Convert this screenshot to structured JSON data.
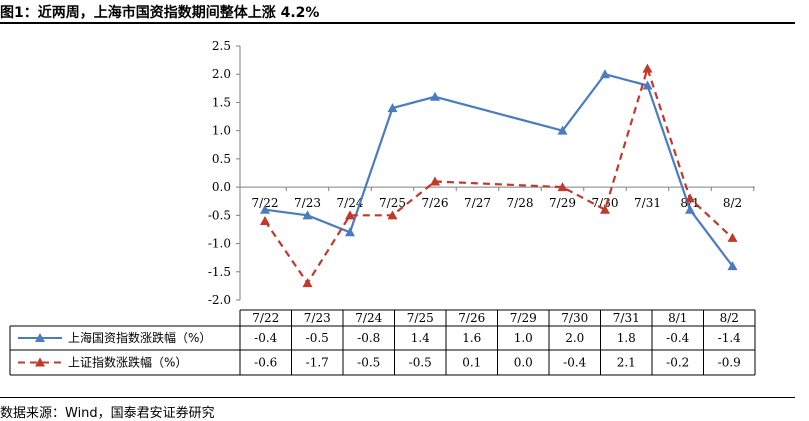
{
  "figure_title": "图1：近两周，上海市国资指数期间整体上涨 4.2%",
  "source_note": "数据来源：Wind，国泰君安证券研究",
  "colors": {
    "series1": "#4a7cbf",
    "series2": "#c0392b",
    "grid": "#7f7f7f"
  },
  "chart_data": {
    "type": "line",
    "title": "",
    "categories": [
      "7/22",
      "7/23",
      "7/24",
      "7/25",
      "7/26",
      "7/27",
      "7/28",
      "7/29",
      "7/30",
      "7/31",
      "8/1",
      "8/2"
    ],
    "yticks": [
      "2.5",
      "2.0",
      "1.5",
      "1.0",
      "0.5",
      "0.0",
      "-0.5",
      "-1.0",
      "-1.5",
      "-2.0"
    ],
    "ylim": [
      -2.0,
      2.5
    ],
    "grid": false,
    "legend": "table-below",
    "series": [
      {
        "name": "上海国资指数涨跌幅（%）",
        "style": "solid",
        "marker": "triangle",
        "points": [
          [
            "7/22",
            -0.4
          ],
          [
            "7/23",
            -0.5
          ],
          [
            "7/24",
            -0.8
          ],
          [
            "7/25",
            1.4
          ],
          [
            "7/26",
            1.6
          ],
          [
            "7/29",
            1.0
          ],
          [
            "7/30",
            2.0
          ],
          [
            "7/31",
            1.8
          ],
          [
            "8/1",
            -0.4
          ],
          [
            "8/2",
            -1.4
          ]
        ]
      },
      {
        "name": "上证指数涨跌幅（%）",
        "style": "dashed",
        "marker": "triangle",
        "points": [
          [
            "7/22",
            -0.6
          ],
          [
            "7/23",
            -1.7
          ],
          [
            "7/24",
            -0.5
          ],
          [
            "7/25",
            -0.5
          ],
          [
            "7/26",
            0.1
          ],
          [
            "7/29",
            0.0
          ],
          [
            "7/30",
            -0.4
          ],
          [
            "7/31",
            2.1
          ],
          [
            "8/1",
            -0.2
          ],
          [
            "8/2",
            -0.9
          ]
        ]
      }
    ],
    "table": {
      "headers": [
        "7/22",
        "7/23",
        "7/24",
        "7/25",
        "7/26",
        "7/29",
        "7/30",
        "7/31",
        "8/1",
        "8/2"
      ],
      "rows": [
        [
          "-0.4",
          "-0.5",
          "-0.8",
          "1.4",
          "1.6",
          "1.0",
          "2.0",
          "1.8",
          "-0.4",
          "-1.4"
        ],
        [
          "-0.6",
          "-1.7",
          "-0.5",
          "-0.5",
          "0.1",
          "0.0",
          "-0.4",
          "2.1",
          "-0.2",
          "-0.9"
        ]
      ]
    }
  }
}
